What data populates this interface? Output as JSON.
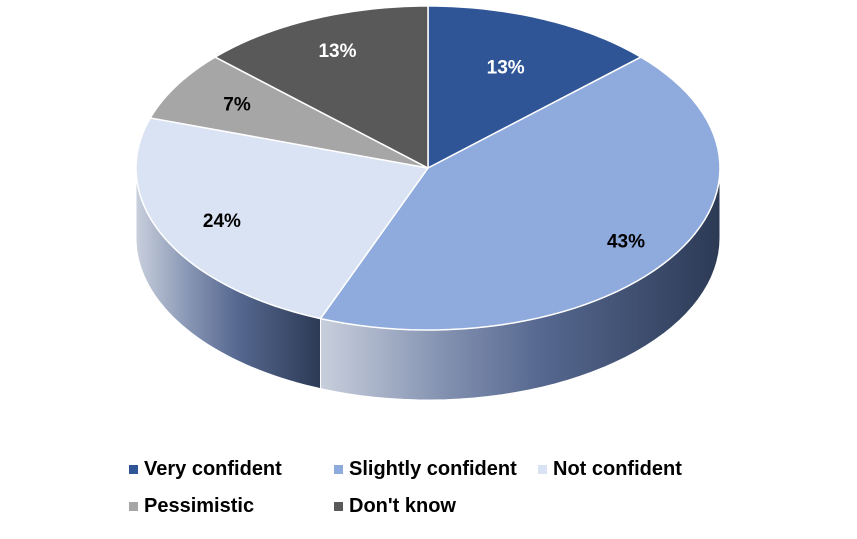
{
  "chart_data": {
    "type": "pie",
    "style": "3d",
    "title": "",
    "categories": [
      "Very confident",
      "Slightly confident",
      "Not confident",
      "Pessimistic",
      "Don't know"
    ],
    "values": [
      13,
      43,
      24,
      7,
      13
    ],
    "labels": [
      "13%",
      "43%",
      "24%",
      "7%",
      "13%"
    ],
    "colors": [
      "#2F5597",
      "#8FAADC",
      "#DAE3F3",
      "#A6A6A6",
      "#595959"
    ],
    "legend_position": "bottom"
  }
}
